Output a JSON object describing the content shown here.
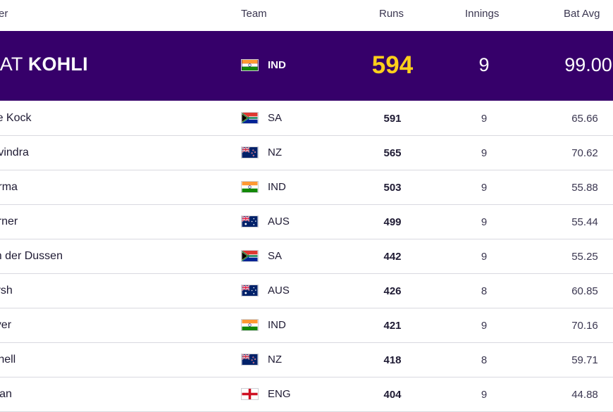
{
  "table": {
    "headers": {
      "player": "er",
      "team": "Team",
      "runs": "Runs",
      "innings": "Innings",
      "bat_avg": "Bat Avg"
    },
    "leader": {
      "first_name": "RAT",
      "last_name": "KOHLI",
      "team": "IND",
      "flag": "india-flag-icon",
      "runs": "594",
      "innings": "9",
      "bat_avg": "99.00"
    },
    "rows": [
      {
        "name": "ton de Kock",
        "team": "SA",
        "flag": "south-africa-flag-icon",
        "runs": "591",
        "innings": "9",
        "bat_avg": "65.66"
      },
      {
        "name": "in Ravindra",
        "team": "NZ",
        "flag": "new-zealand-flag-icon",
        "runs": "565",
        "innings": "9",
        "bat_avg": "70.62"
      },
      {
        "name": "t Sharma",
        "team": "IND",
        "flag": "india-flag-icon",
        "runs": "503",
        "innings": "9",
        "bat_avg": "55.88"
      },
      {
        "name": "d Warner",
        "team": "AUS",
        "flag": "australia-flag-icon",
        "runs": "499",
        "innings": "9",
        "bat_avg": "55.44"
      },
      {
        "name": "ie van der Dussen",
        "team": "SA",
        "flag": "south-africa-flag-icon",
        "runs": "442",
        "innings": "9",
        "bat_avg": "55.25"
      },
      {
        "name": "h Marsh",
        "team": "AUS",
        "flag": "australia-flag-icon",
        "runs": "426",
        "innings": "8",
        "bat_avg": "60.85"
      },
      {
        "name": "yas Iyer",
        "team": "IND",
        "flag": "india-flag-icon",
        "runs": "421",
        "innings": "9",
        "bat_avg": "70.16"
      },
      {
        "name": "l Mitchell",
        "team": "NZ",
        "flag": "new-zealand-flag-icon",
        "runs": "418",
        "innings": "8",
        "bat_avg": "59.71"
      },
      {
        "name": "d Malan",
        "team": "ENG",
        "flag": "england-flag-icon",
        "runs": "404",
        "innings": "9",
        "bat_avg": "44.88"
      }
    ]
  },
  "colors": {
    "leader_bg": "#36006a",
    "leader_runs": "#ffcf1b",
    "divider": "#d9d9e0"
  }
}
